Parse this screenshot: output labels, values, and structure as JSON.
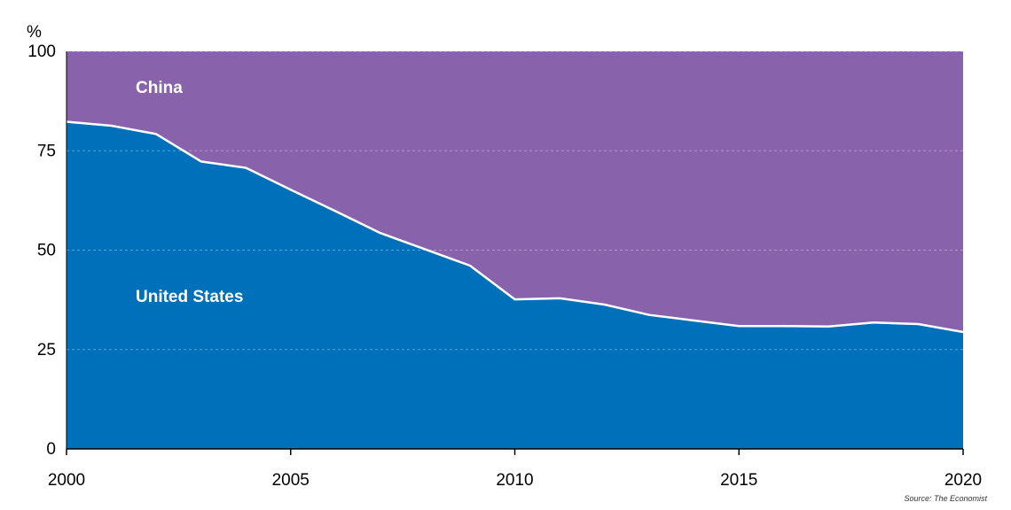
{
  "chart_data": {
    "type": "area",
    "stacked": true,
    "stack_mode": "percent",
    "ylabel": "%",
    "ylim": [
      0,
      100
    ],
    "yticks": [
      0,
      25,
      50,
      75,
      100
    ],
    "xlim": [
      2000,
      2020
    ],
    "xticks": [
      2000,
      2005,
      2010,
      2015,
      2020
    ],
    "grid": true,
    "x": [
      2000,
      2001,
      2002,
      2003,
      2004,
      2005,
      2006,
      2007,
      2008,
      2009,
      2010,
      2011,
      2012,
      2013,
      2014,
      2015,
      2016,
      2017,
      2018,
      2019,
      2020
    ],
    "series": [
      {
        "name": "United States",
        "color": "#0070ba",
        "values": [
          82.3,
          81.3,
          79.2,
          72.3,
          70.7,
          65.2,
          59.8,
          54.3,
          50.2,
          46.1,
          37.6,
          37.9,
          36.3,
          33.7,
          32.3,
          30.9,
          30.9,
          30.8,
          31.8,
          31.4,
          29.4
        ]
      },
      {
        "name": "China",
        "color": "#8862aa",
        "values": [
          17.7,
          18.7,
          20.8,
          27.7,
          29.3,
          34.8,
          40.2,
          45.7,
          49.8,
          53.9,
          62.4,
          62.1,
          63.7,
          66.3,
          67.7,
          69.1,
          69.1,
          69.2,
          68.2,
          68.6,
          70.6
        ]
      }
    ],
    "source": "Source: The Economist"
  }
}
